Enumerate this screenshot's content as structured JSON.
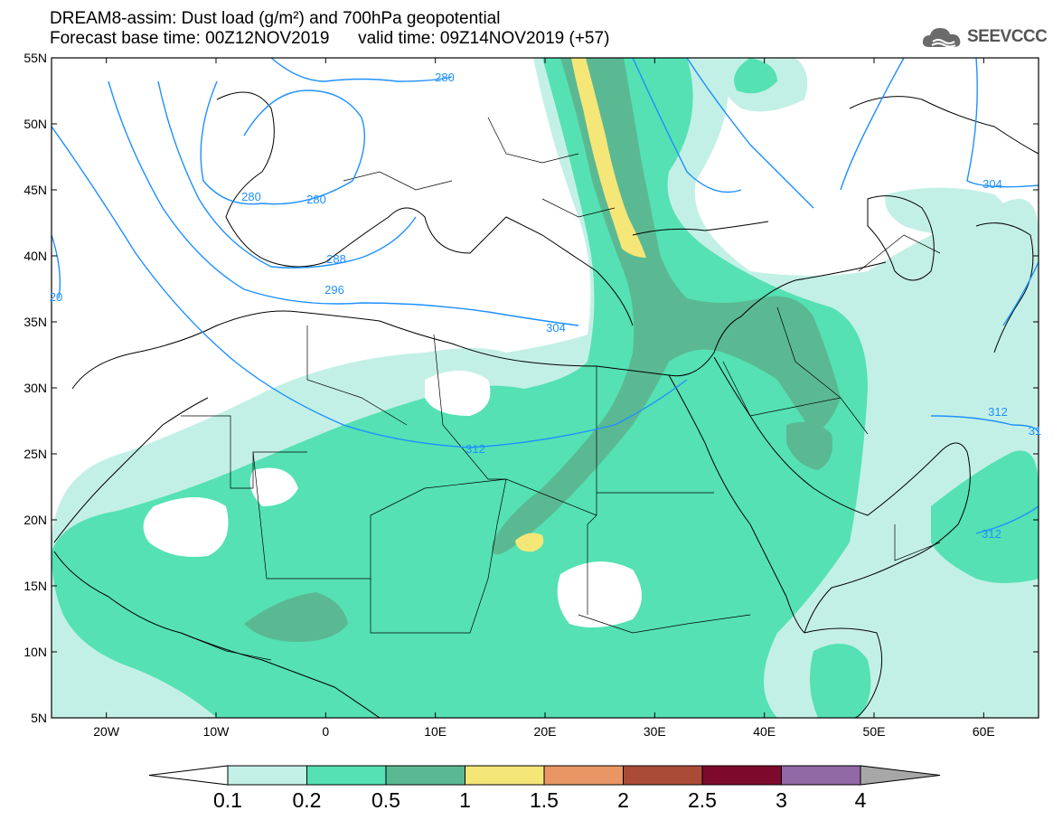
{
  "header": {
    "title_line1": "DREAM8-assim: Dust load (g/m²) and 700hPa geopotential",
    "title_line2": "Forecast base time: 00Z12NOV2019      valid time: 09Z14NOV2019 (+57)",
    "brand": "SEEVCCC",
    "brand_icon": "cloud-logo-icon"
  },
  "map": {
    "lat_labels": [
      "55N",
      "50N",
      "45N",
      "40N",
      "35N",
      "30N",
      "25N",
      "20N",
      "15N",
      "10N",
      "5N"
    ],
    "lon_labels": [
      "20W",
      "10W",
      "0",
      "10E",
      "20E",
      "30E",
      "40E",
      "50E",
      "60E"
    ],
    "contour_color": "#1e90ff",
    "contour_labels": [
      "280",
      "280",
      "280",
      "288",
      "296",
      "304",
      "304",
      "312",
      "312",
      "312",
      "20",
      "31"
    ]
  },
  "legend": {
    "thresholds": [
      "0.1",
      "0.2",
      "0.5",
      "1",
      "1.5",
      "2",
      "2.5",
      "3",
      "4"
    ],
    "colors": [
      "#ffffff",
      "#c3f0e6",
      "#55e1b3",
      "#5ab993",
      "#f5e678",
      "#e99664",
      "#aa4b37",
      "#7d0a2d",
      "#9169a5",
      "#a7a7a7"
    ]
  }
}
